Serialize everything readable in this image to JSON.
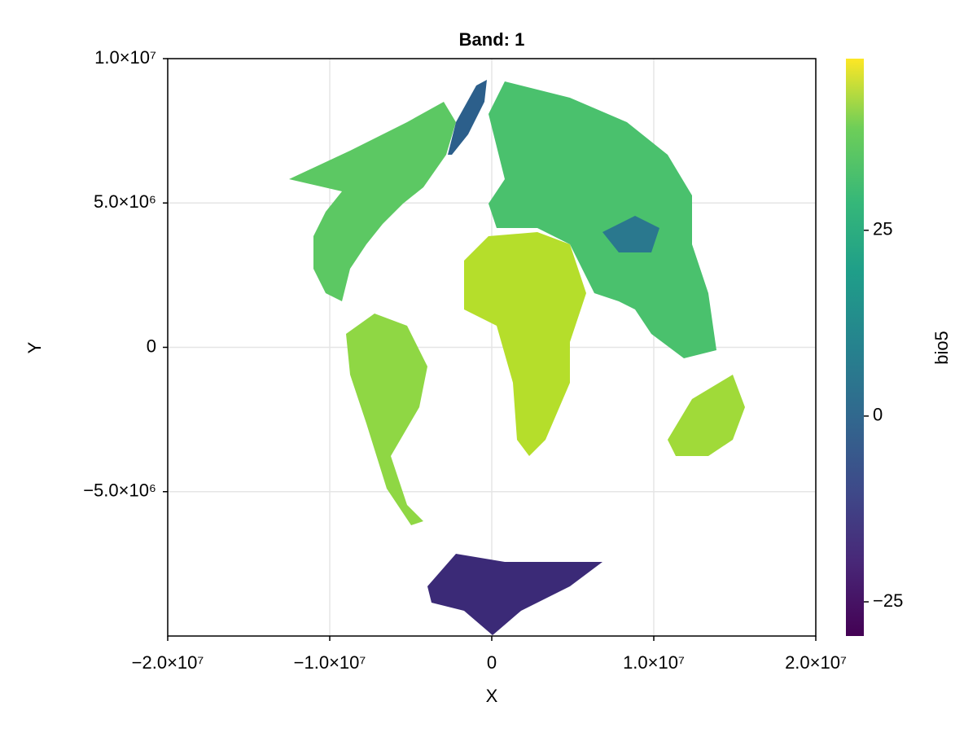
{
  "chart_data": {
    "type": "heatmap",
    "title": "Band: 1",
    "x_label": "X",
    "y_label": "Y",
    "xlim": [
      -20000000,
      20000000
    ],
    "xticks": [
      {
        "value": -20000000,
        "label": "−2.0×10⁷"
      },
      {
        "value": -10000000,
        "label": "−1.0×10⁷"
      },
      0,
      {
        "value": 10000000,
        "label": "1.0×10⁷"
      },
      {
        "value": 20000000,
        "label": "2.0×10⁷"
      }
    ],
    "ylim": [
      -10000000,
      10000000
    ],
    "yticks": [
      {
        "value": -5000000,
        "label": "−5.0×10⁶"
      },
      0,
      {
        "value": 5000000,
        "label": "5.0×10⁶"
      },
      {
        "value": 10000000,
        "label": "1.0×10⁷"
      }
    ],
    "grid": true,
    "colorbar": {
      "label": "bio5",
      "colormap": "viridis",
      "clim": [
        -29.6,
        48.1
      ],
      "ticks": [
        {
          "value": -25,
          "label": "−25"
        },
        0,
        25
      ]
    }
  }
}
